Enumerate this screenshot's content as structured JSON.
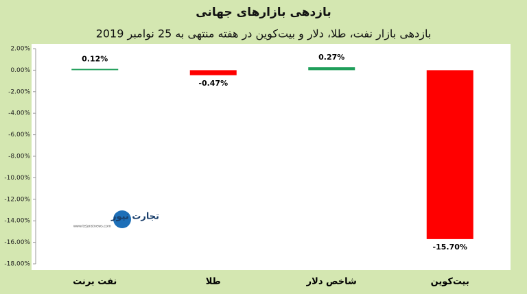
{
  "chart_data": {
    "type": "bar",
    "title": "بازدهی بازارهای جهانی",
    "subtitle": "بازدهی بازار نفت، طلا، دلار و بیت‌کوین در هفته منتهی به 25 نوامبر 2019",
    "categories": [
      "نفت برنت",
      "طلا",
      "شاخص دلار",
      "بیت‌کوین"
    ],
    "values": [
      0.12,
      -0.47,
      0.27,
      -15.7
    ],
    "value_labels": [
      "0.12%",
      "-0.47%",
      "0.27%",
      "-15.70%"
    ],
    "colors": [
      "#1f9e5a",
      "#ff0000",
      "#1f9e5a",
      "#ff0000"
    ],
    "ylim": [
      -18,
      2
    ],
    "yticks": [
      {
        "value": 2,
        "label": "2.00%"
      },
      {
        "value": 0,
        "label": "0.00%"
      },
      {
        "value": -2,
        "label": "-2.00%"
      },
      {
        "value": -4,
        "label": "-4.00%"
      },
      {
        "value": -6,
        "label": "-6.00%"
      },
      {
        "value": -8,
        "label": "-8.00%"
      },
      {
        "value": -10,
        "label": "-10.00%"
      },
      {
        "value": -12,
        "label": "-12.00%"
      },
      {
        "value": -14,
        "label": "-14.00%"
      },
      {
        "value": -16,
        "label": "-16.00%"
      },
      {
        "value": -18,
        "label": "-18.00%"
      }
    ],
    "grid": false,
    "watermark": "تجارت نیوز",
    "watermark_url": "www.tejaratnews.com"
  }
}
